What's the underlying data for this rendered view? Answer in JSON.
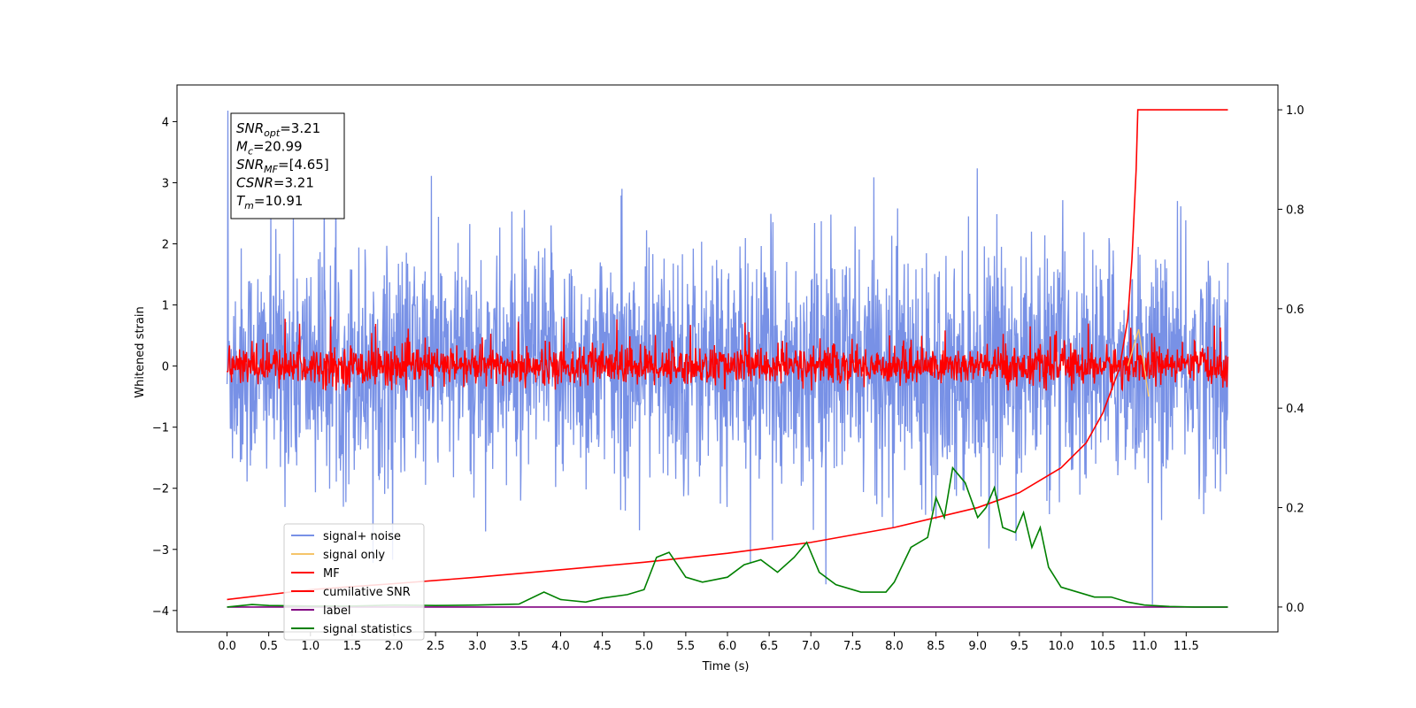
{
  "chart_data": {
    "type": "line",
    "xlabel": "Time (s)",
    "ylabel": "Whitened strain",
    "y2label": "",
    "xlim": [
      -0.6,
      12.6
    ],
    "ylim": [
      -4.35,
      4.6
    ],
    "y2lim": [
      -0.05,
      1.05
    ],
    "x_ticks": [
      "0.0",
      "0.5",
      "1.0",
      "1.5",
      "2.0",
      "2.5",
      "3.0",
      "3.5",
      "4.0",
      "4.5",
      "5.0",
      "5.5",
      "6.0",
      "6.5",
      "7.0",
      "7.5",
      "8.0",
      "8.5",
      "9.0",
      "9.5",
      "10.0",
      "10.5",
      "11.0",
      "11.5"
    ],
    "y_ticks": [
      "−4",
      "−3",
      "−2",
      "−1",
      "0",
      "1",
      "2",
      "3",
      "4"
    ],
    "y2_ticks": [
      "0.0",
      "0.2",
      "0.4",
      "0.6",
      "0.8",
      "1.0"
    ],
    "grid": false,
    "legend_position": "lower-left",
    "annotation": [
      {
        "base": "SNR",
        "sub": "opt",
        "value": "=3.21"
      },
      {
        "base": "M",
        "sub": "c",
        "value": "=20.99"
      },
      {
        "base": "SNR",
        "sub": "MF",
        "value": "=[4.65]"
      },
      {
        "base": "CSNR",
        "sub": "",
        "value": "=3.21"
      },
      {
        "base": "T",
        "sub": "m",
        "value": "=10.91"
      }
    ],
    "series": [
      {
        "name": "signal+ noise",
        "color": "#7891e6",
        "axis": "left",
        "x_range": [
          0,
          12
        ],
        "spread": [
          -1.6,
          1.6
        ],
        "peaks": [
          4.18,
          -3.9
        ]
      },
      {
        "name": "signal only",
        "color": "#f5c46a",
        "axis": "left",
        "x_range": [
          0,
          12
        ],
        "note_peak": [
          [
            10.8,
            0.0
          ],
          [
            10.93,
            0.6
          ],
          [
            11.05,
            -0.5
          ]
        ]
      },
      {
        "name": "MF",
        "color": "#ff0000",
        "axis": "left",
        "x_range": [
          0,
          12
        ],
        "spread": [
          -0.4,
          0.5
        ],
        "peaks": [
          1.0,
          -0.4
        ]
      },
      {
        "name": "cumilative SNR",
        "color": "#ff0000",
        "axis": "right",
        "x": [
          0.0,
          0.5,
          1.0,
          2.0,
          3.0,
          4.0,
          5.0,
          6.0,
          7.0,
          8.0,
          9.0,
          9.5,
          10.0,
          10.3,
          10.5,
          10.7,
          10.8,
          10.85,
          10.9,
          10.92,
          10.95,
          12.0
        ],
        "y": [
          0.015,
          0.025,
          0.035,
          0.047,
          0.06,
          0.075,
          0.09,
          0.108,
          0.13,
          0.16,
          0.2,
          0.23,
          0.28,
          0.33,
          0.39,
          0.48,
          0.58,
          0.7,
          0.88,
          1.0,
          1.0,
          1.0
        ]
      },
      {
        "name": "label",
        "color": "#800080",
        "axis": "right",
        "x": [
          0,
          12
        ],
        "y": [
          0,
          0
        ]
      },
      {
        "name": "signal statistics",
        "color": "#008000",
        "axis": "right",
        "x": [
          0.0,
          0.3,
          0.5,
          1.0,
          1.5,
          2.0,
          2.5,
          3.0,
          3.5,
          3.8,
          4.0,
          4.3,
          4.5,
          4.8,
          5.0,
          5.15,
          5.3,
          5.5,
          5.7,
          6.0,
          6.2,
          6.4,
          6.6,
          6.8,
          6.95,
          7.1,
          7.3,
          7.6,
          7.9,
          8.0,
          8.2,
          8.4,
          8.5,
          8.6,
          8.7,
          8.85,
          9.0,
          9.1,
          9.2,
          9.3,
          9.45,
          9.55,
          9.65,
          9.75,
          9.85,
          10.0,
          10.2,
          10.4,
          10.6,
          10.8,
          11.0,
          11.3,
          11.6,
          12.0
        ],
        "y": [
          0.0,
          0.005,
          0.003,
          0.002,
          0.002,
          0.004,
          0.003,
          0.004,
          0.006,
          0.03,
          0.015,
          0.01,
          0.018,
          0.025,
          0.035,
          0.1,
          0.11,
          0.06,
          0.05,
          0.06,
          0.085,
          0.095,
          0.07,
          0.1,
          0.13,
          0.07,
          0.045,
          0.03,
          0.03,
          0.05,
          0.12,
          0.14,
          0.22,
          0.18,
          0.28,
          0.25,
          0.18,
          0.2,
          0.24,
          0.16,
          0.15,
          0.19,
          0.12,
          0.16,
          0.08,
          0.04,
          0.03,
          0.02,
          0.02,
          0.01,
          0.004,
          0.001,
          0.0,
          0.0
        ]
      }
    ]
  }
}
